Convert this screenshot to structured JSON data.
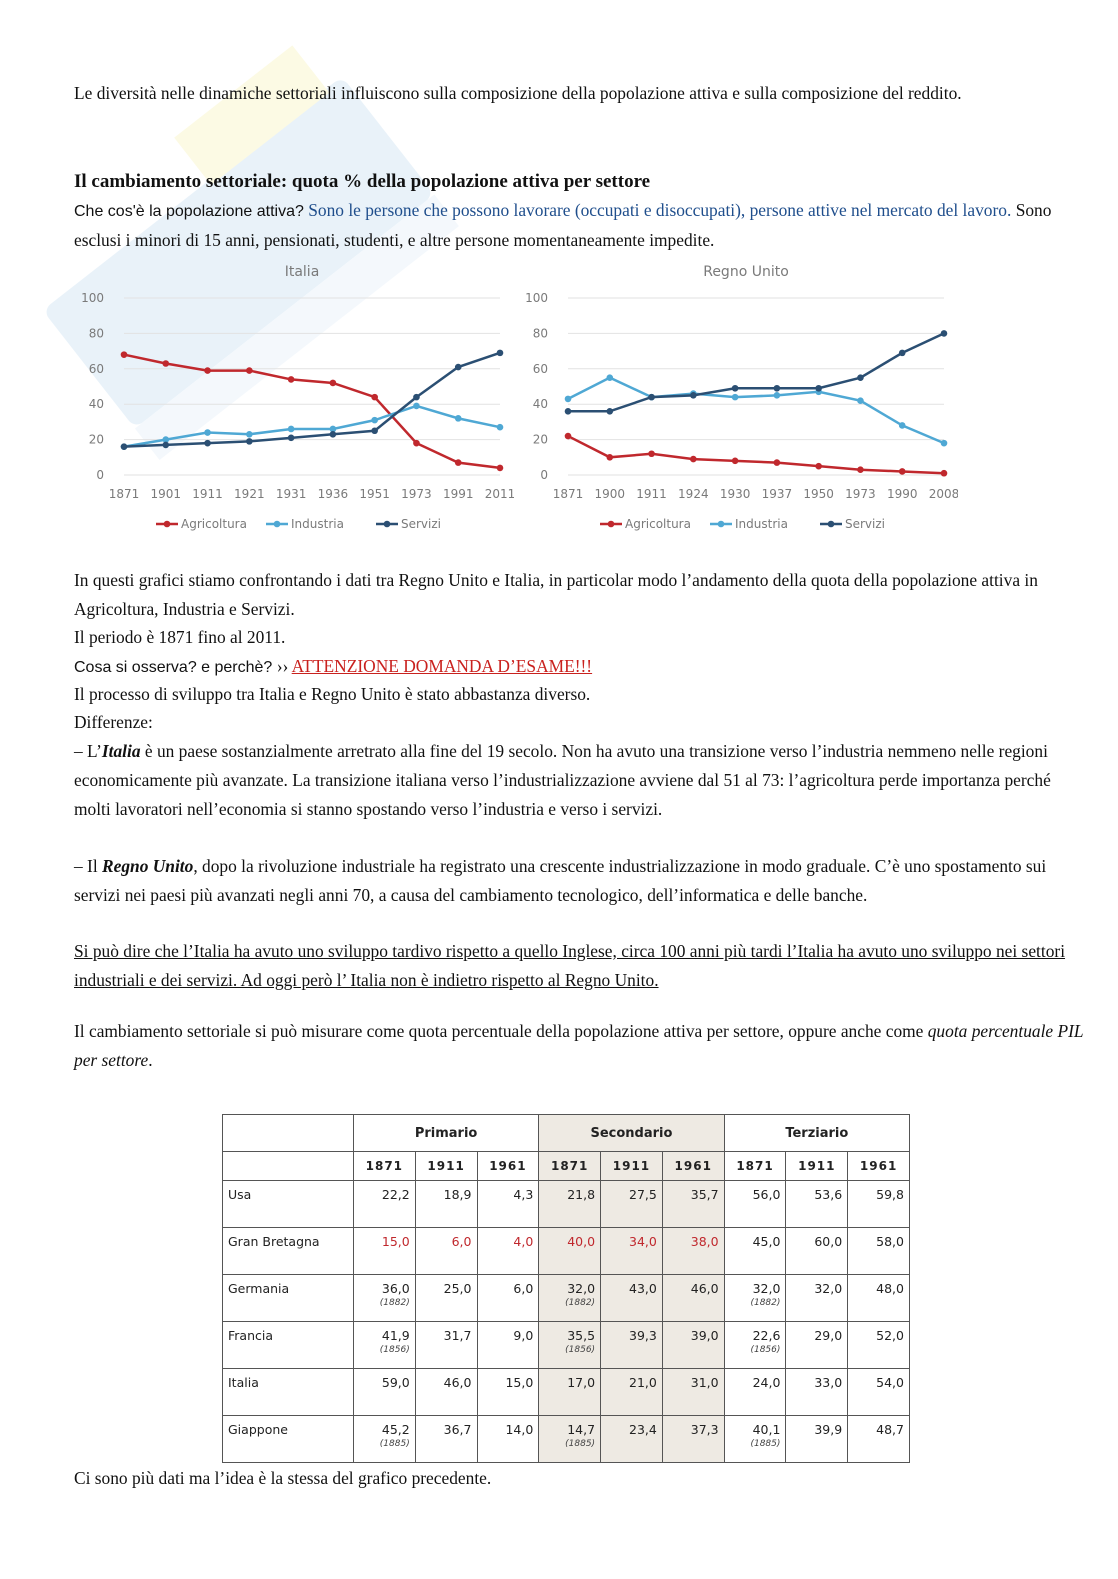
{
  "intro": "Le diversità nelle dinamiche settoriali influiscono sulla composizione della popolazione attiva e sulla composizione del reddito.",
  "section_title": "Il cambiamento settoriale: quota % della popolazione attiva per settore",
  "question_label": "Che cos'è la popolazione attiva?",
  "definition_link": "Sono le persone che possono lavorare (occupati e disoccupati), persone attive nel mercato del lavoro.",
  "definition_rest": " Sono esclusi i minori di 15 anni, pensionati, studenti, e altre persone momentaneamente impedite.",
  "colors": {
    "agricoltura": "#c0282d",
    "industria": "#4fa8d4",
    "servizi": "#2b4f73",
    "axis_text": "#7a7a7a",
    "grid": "#e2e2e2"
  },
  "chart_data": [
    {
      "type": "line",
      "title": "Italia",
      "x": [
        "1871",
        "1901",
        "1911",
        "1921",
        "1931",
        "1936",
        "1951",
        "1973",
        "1991",
        "2011"
      ],
      "ylim": [
        0,
        100
      ],
      "yticks": [
        "100",
        "80",
        "60",
        "40",
        "20",
        "0"
      ],
      "grid": true,
      "legend_position": "bottom",
      "series": [
        {
          "name": "Agricoltura",
          "values": [
            68,
            63,
            59,
            59,
            54,
            52,
            44,
            18,
            7,
            4
          ]
        },
        {
          "name": "Industria",
          "values": [
            16,
            20,
            24,
            23,
            26,
            26,
            31,
            39,
            32,
            27
          ]
        },
        {
          "name": "Servizi",
          "values": [
            16,
            17,
            18,
            19,
            21,
            23,
            25,
            44,
            61,
            69
          ]
        }
      ]
    },
    {
      "type": "line",
      "title": "Regno Unito",
      "x": [
        "1871",
        "1900",
        "1911",
        "1924",
        "1930",
        "1937",
        "1950",
        "1973",
        "1990",
        "2008"
      ],
      "ylim": [
        0,
        100
      ],
      "yticks": [
        "100",
        "80",
        "60",
        "40",
        "20",
        "0"
      ],
      "grid": true,
      "legend_position": "bottom",
      "series": [
        {
          "name": "Agricoltura",
          "values": [
            22,
            10,
            12,
            9,
            8,
            7,
            5,
            3,
            2,
            1
          ]
        },
        {
          "name": "Industria",
          "values": [
            43,
            55,
            44,
            46,
            44,
            45,
            47,
            42,
            28,
            18
          ]
        },
        {
          "name": "Servizi",
          "values": [
            36,
            36,
            44,
            45,
            49,
            49,
            49,
            55,
            69,
            80
          ]
        }
      ]
    }
  ],
  "comparison_1": "In questi grafici stiamo confrontando i dati tra Regno Unito e Italia, in particolar modo l’andamento della quota della popolazione attiva in Agricoltura, Industria e Servizi.",
  "period": "Il periodo è 1871 fino al 2011.",
  "observe_label": "Cosa si osserva? e perchè?",
  "arrow_glyph": "››",
  "exam_alert": "ATTENZIONE DOMANDA D’ESAME!!!",
  "process": "Il processo di sviluppo tra Italia e Regno Unito è stato abbastanza diverso.",
  "differences_label": "Differenze:",
  "diff_it": {
    "prefix": " –  L’",
    "bold": "Italia",
    "text": " è un paese sostanzialmente arretrato alla fine del 19 secolo. Non ha avuto una transizione verso l’industria nemmeno nelle regioni economicamente più avanzate. La transizione italiana verso l’industrializzazione avviene dal 51 al 73: l’agricoltura perde importanza perché molti lavoratori nell’economia si stanno spostando verso l’industria e verso i servizi."
  },
  "diff_uk": {
    "prefix": " –  Il ",
    "bold": "Regno Unito",
    "text": ", dopo la rivoluzione industriale ha registrato una crescente industrializzazione in modo graduale. C’è uno spostamento sui servizi nei paesi più avanzati negli anni 70, a causa del cambiamento tecnologico, dell’informatica e delle banche."
  },
  "conclusion": "Si può dire che l’Italia ha avuto uno sviluppo tardivo rispetto a quello Inglese, circa 100 anni più tardi l’Italia ha avuto uno sviluppo nei settori industriali e dei servizi. Ad oggi però l’ Italia non è indietro rispetto al Regno Unito.",
  "measure_text": "Il cambiamento settoriale si può misurare come quota percentuale della popolazione attiva per settore, oppure anche come ",
  "measure_italic": "quota percentuale PIL per settore",
  "measure_end": ".",
  "table": {
    "groups": [
      "Primario",
      "Secondario",
      "Terziario"
    ],
    "years": [
      "1871",
      "1911",
      "1961",
      "1871",
      "1911",
      "1961",
      "1871",
      "1911",
      "1961"
    ],
    "rows": [
      {
        "country": "Usa",
        "values": [
          "22,2",
          "18,9",
          "4,3",
          "21,8",
          "27,5",
          "35,7",
          "56,0",
          "53,6",
          "59,8"
        ],
        "notes": [
          "",
          "",
          "",
          "",
          "",
          "",
          "",
          "",
          ""
        ]
      },
      {
        "country": "Gran Bretagna",
        "values": [
          "15,0",
          "6,0",
          "4,0",
          "40,0",
          "34,0",
          "38,0",
          "45,0",
          "60,0",
          "58,0"
        ],
        "notes": [
          "",
          "",
          "",
          "",
          "",
          "",
          "",
          "",
          ""
        ]
      },
      {
        "country": "Germania",
        "values": [
          "36,0",
          "25,0",
          "6,0",
          "32,0",
          "43,0",
          "46,0",
          "32,0",
          "32,0",
          "48,0"
        ],
        "notes": [
          "(1882)",
          "",
          "",
          "(1882)",
          "",
          "",
          "(1882)",
          "",
          ""
        ]
      },
      {
        "country": "Francia",
        "values": [
          "41,9",
          "31,7",
          "9,0",
          "35,5",
          "39,3",
          "39,0",
          "22,6",
          "29,0",
          "52,0"
        ],
        "notes": [
          "(1856)",
          "",
          "",
          "(1856)",
          "",
          "",
          "(1856)",
          "",
          ""
        ]
      },
      {
        "country": "Italia",
        "values": [
          "59,0",
          "46,0",
          "15,0",
          "17,0",
          "21,0",
          "31,0",
          "24,0",
          "33,0",
          "54,0"
        ],
        "notes": [
          "",
          "",
          "",
          "",
          "",
          "",
          "",
          "",
          ""
        ]
      },
      {
        "country": "Giappone",
        "values": [
          "45,2",
          "36,7",
          "14,0",
          "14,7",
          "23,4",
          "37,3",
          "40,1",
          "39,9",
          "48,7"
        ],
        "notes": [
          "(1885)",
          "",
          "",
          "(1885)",
          "",
          "",
          "(1885)",
          "",
          ""
        ]
      }
    ]
  },
  "closing": "Ci sono più dati ma l’idea è la stessa del grafico precedente."
}
